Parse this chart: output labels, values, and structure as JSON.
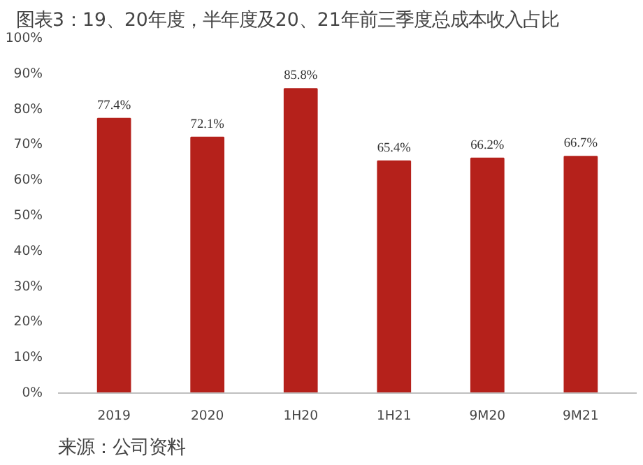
{
  "chart_data": {
    "type": "bar",
    "title": "图表3：19、20年度，半年度及20、21年前三季度总成本收入占比",
    "categories": [
      "2019",
      "2020",
      "1H20",
      "1H21",
      "9M20",
      "9M21"
    ],
    "values": [
      77.4,
      72.1,
      85.8,
      65.4,
      66.2,
      66.7
    ],
    "value_labels": [
      "77.4%",
      "72.1%",
      "85.8%",
      "65.4%",
      "66.2%",
      "66.7%"
    ],
    "color": "#b5211b",
    "ylim": [
      0,
      100
    ],
    "yticks": [
      {
        "value": 0,
        "label": "0%"
      },
      {
        "value": 10,
        "label": "10%"
      },
      {
        "value": 20,
        "label": "20%"
      },
      {
        "value": 30,
        "label": "30%"
      },
      {
        "value": 40,
        "label": "40%"
      },
      {
        "value": 50,
        "label": "50%"
      },
      {
        "value": 60,
        "label": "60%"
      },
      {
        "value": 70,
        "label": "70%"
      },
      {
        "value": 80,
        "label": "80%"
      },
      {
        "value": 90,
        "label": "90%"
      },
      {
        "value": 100,
        "label": "100%"
      }
    ],
    "grid": false,
    "annotations": [
      "来源：公司资料"
    ]
  }
}
